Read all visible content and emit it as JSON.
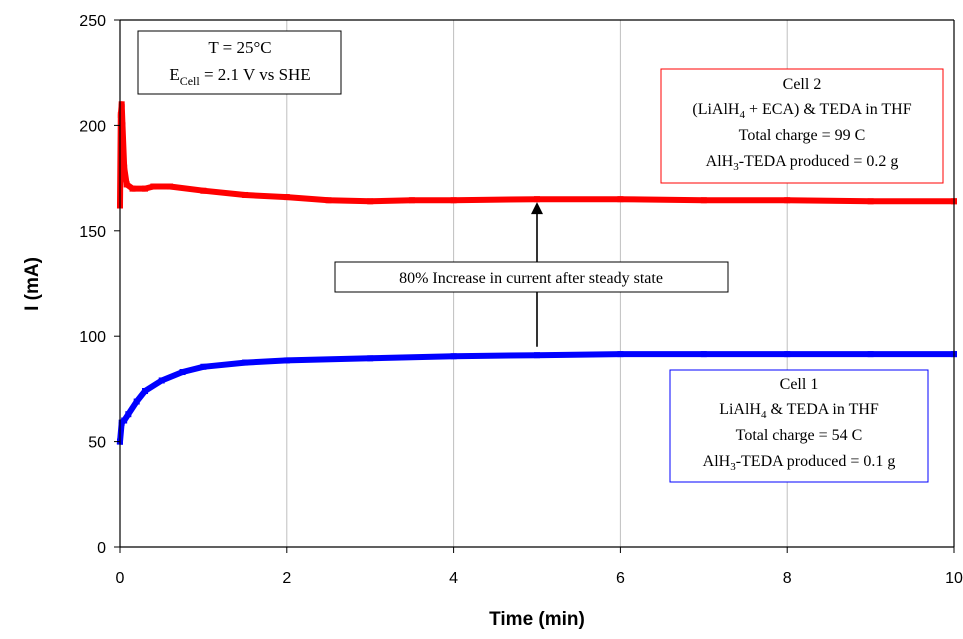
{
  "chart_data": {
    "type": "scatter",
    "xlabel": "Time (min)",
    "ylabel": "I (mA)",
    "xlim": [
      0,
      10
    ],
    "ylim": [
      0,
      250
    ],
    "x_ticks": [
      "0",
      "2",
      "4",
      "6",
      "8",
      "10"
    ],
    "y_ticks": [
      "0",
      "50",
      "100",
      "150",
      "200",
      "250"
    ],
    "grid": "vertical",
    "series": [
      {
        "color": "#ff0000",
        "points": [
          [
            0,
            162
          ],
          [
            0.01,
            205
          ],
          [
            0.02,
            210
          ],
          [
            0.03,
            200
          ],
          [
            0.05,
            180
          ],
          [
            0.08,
            172
          ],
          [
            0.15,
            170
          ],
          [
            0.3,
            170
          ],
          [
            0.4,
            171
          ],
          [
            0.6,
            171
          ],
          [
            1.0,
            169
          ],
          [
            1.5,
            167
          ],
          [
            2.0,
            166
          ],
          [
            2.5,
            164.5
          ],
          [
            3.0,
            164
          ],
          [
            3.5,
            164.5
          ],
          [
            4.0,
            164.5
          ],
          [
            5.0,
            165
          ],
          [
            6.0,
            165
          ],
          [
            7.0,
            164.5
          ],
          [
            8.0,
            164.5
          ],
          [
            9.0,
            164
          ],
          [
            10.0,
            164
          ]
        ]
      },
      {
        "color": "#0000ff",
        "points": [
          [
            0,
            50
          ],
          [
            0.02,
            59
          ],
          [
            0.05,
            60
          ],
          [
            0.1,
            63
          ],
          [
            0.2,
            69
          ],
          [
            0.3,
            74
          ],
          [
            0.5,
            79
          ],
          [
            0.75,
            83
          ],
          [
            1.0,
            85.5
          ],
          [
            1.5,
            87.5
          ],
          [
            2.0,
            88.5
          ],
          [
            3.0,
            89.5
          ],
          [
            4.0,
            90.5
          ],
          [
            5.0,
            91
          ],
          [
            6.0,
            91.5
          ],
          [
            7.0,
            91.5
          ],
          [
            8.0,
            91.5
          ],
          [
            9.0,
            91.5
          ],
          [
            10.0,
            91.5
          ]
        ]
      }
    ],
    "annotations": {
      "conditions": {
        "temp": "T = 25°C",
        "e_main": "E",
        "e_sub": "Cell",
        "e_rest": " = 2.1 V vs SHE"
      },
      "cell2": {
        "line1": "Cell 2",
        "line2_a": "(LiAlH",
        "line2_sub": "4",
        "line2_b": " + ECA) & TEDA in THF",
        "line3": "Total charge = 99 C",
        "line4_a": "AlH",
        "line4_sub": "3",
        "line4_b": "-TEDA produced  = 0.2 g",
        "border_color": "#ff0000"
      },
      "cell1": {
        "line1": "Cell 1",
        "line2_a": "LiAlH",
        "line2_sub": "4",
        "line2_b": " & TEDA in THF",
        "line3": "Total charge = 54 C",
        "line4_a": "AlH",
        "line4_sub": "3",
        "line4_b": "-TEDA produced  = 0.1 g",
        "border_color": "#0000ff"
      },
      "increase": {
        "text": "80% Increase in current after steady state",
        "arrow_x": 5,
        "arrow_from": 95,
        "arrow_to": 165
      }
    }
  }
}
